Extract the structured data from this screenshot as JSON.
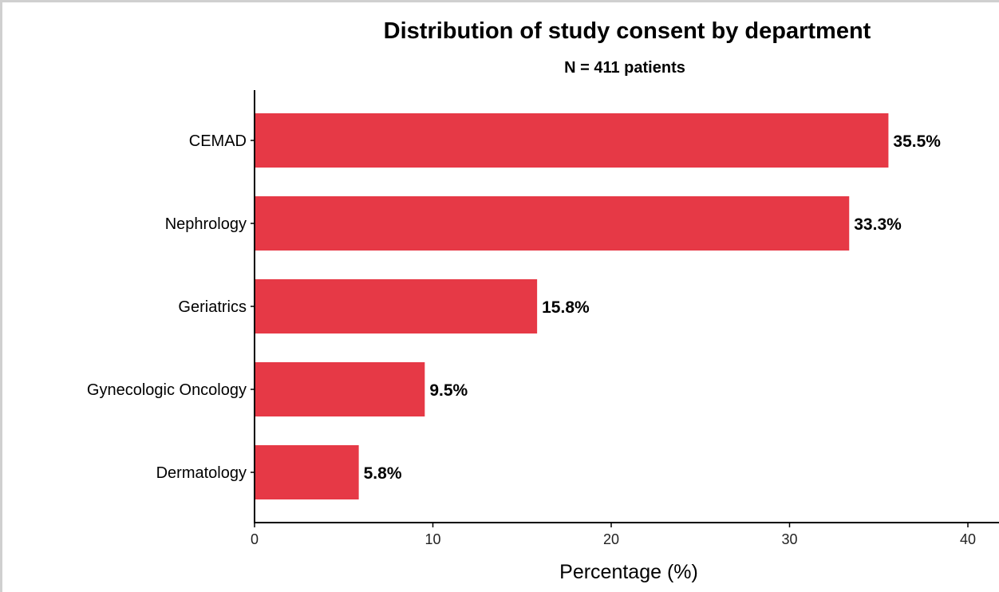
{
  "chart_data": {
    "type": "bar",
    "orientation": "horizontal",
    "title": "Distribution of study consent by department",
    "subtitle": "N = 411 patients",
    "xlabel": "Percentage (%)",
    "ylabel": "",
    "categories": [
      "CEMAD",
      "Nephrology",
      "Geriatrics",
      "Gynecologic Oncology",
      "Dermatology"
    ],
    "values": [
      35.5,
      33.3,
      15.8,
      9.5,
      5.8
    ],
    "data_labels": [
      "35.5%",
      "33.3%",
      "15.8%",
      "9.5%",
      "5.8%"
    ],
    "xticks": [
      0,
      10,
      20,
      30,
      40
    ],
    "xlim": [
      0,
      40
    ],
    "grid": false,
    "legend": "none",
    "bar_color": "#e63946"
  }
}
